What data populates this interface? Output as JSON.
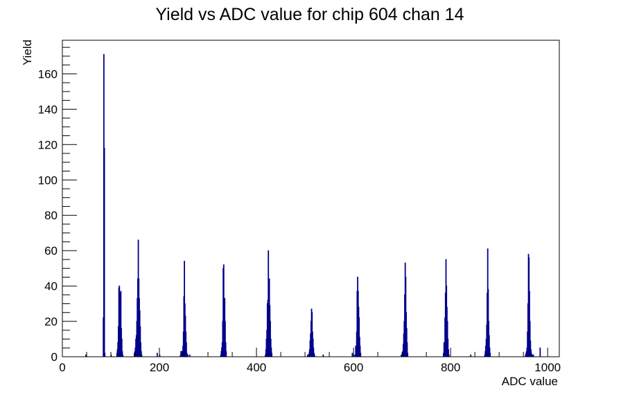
{
  "chart_data": {
    "type": "histogram",
    "title": "Yield vs ADC value for chip 604 chan 14",
    "xlabel": "ADC value",
    "ylabel": "Yield",
    "xlim": [
      0,
      1024
    ],
    "ylim": [
      0,
      179
    ],
    "x_ticks": [
      0,
      200,
      400,
      600,
      800,
      1000
    ],
    "y_ticks": [
      0,
      20,
      40,
      60,
      80,
      100,
      120,
      140,
      160
    ],
    "bin_width": 1,
    "line_color": "#00008b",
    "series": [
      {
        "bins": [
          [
            48,
            1
          ],
          [
            84,
            22
          ],
          [
            85,
            171
          ],
          [
            86,
            118
          ],
          [
            87,
            2
          ],
          [
            100,
            1
          ],
          [
            112,
            2
          ],
          [
            113,
            4
          ],
          [
            114,
            8
          ],
          [
            115,
            17
          ],
          [
            116,
            39
          ],
          [
            117,
            40
          ],
          [
            118,
            24
          ],
          [
            119,
            36
          ],
          [
            120,
            37
          ],
          [
            121,
            16
          ],
          [
            122,
            10
          ],
          [
            123,
            3
          ],
          [
            124,
            1
          ],
          [
            148,
            2
          ],
          [
            149,
            3
          ],
          [
            150,
            5
          ],
          [
            151,
            10
          ],
          [
            152,
            12
          ],
          [
            153,
            20
          ],
          [
            154,
            33
          ],
          [
            155,
            44
          ],
          [
            156,
            66
          ],
          [
            157,
            44
          ],
          [
            158,
            33
          ],
          [
            159,
            26
          ],
          [
            160,
            17
          ],
          [
            161,
            8
          ],
          [
            162,
            3
          ],
          [
            163,
            1
          ],
          [
            195,
            2
          ],
          [
            200,
            1
          ],
          [
            243,
            1
          ],
          [
            244,
            3
          ],
          [
            245,
            1
          ],
          [
            246,
            3
          ],
          [
            248,
            6
          ],
          [
            249,
            14
          ],
          [
            250,
            34
          ],
          [
            251,
            54
          ],
          [
            252,
            30
          ],
          [
            253,
            23
          ],
          [
            254,
            14
          ],
          [
            255,
            8
          ],
          [
            256,
            2
          ],
          [
            258,
            1
          ],
          [
            262,
            1
          ],
          [
            326,
            1
          ],
          [
            327,
            3
          ],
          [
            328,
            5
          ],
          [
            329,
            8
          ],
          [
            330,
            20
          ],
          [
            331,
            50
          ],
          [
            332,
            52
          ],
          [
            333,
            30
          ],
          [
            334,
            33
          ],
          [
            335,
            20
          ],
          [
            336,
            8
          ],
          [
            337,
            3
          ],
          [
            418,
            1
          ],
          [
            419,
            4
          ],
          [
            420,
            10
          ],
          [
            421,
            15
          ],
          [
            422,
            30
          ],
          [
            423,
            32
          ],
          [
            424,
            60
          ],
          [
            425,
            30
          ],
          [
            426,
            44
          ],
          [
            427,
            29
          ],
          [
            428,
            20
          ],
          [
            429,
            10
          ],
          [
            430,
            5
          ],
          [
            431,
            2
          ],
          [
            505,
            1
          ],
          [
            507,
            1
          ],
          [
            508,
            2
          ],
          [
            509,
            4
          ],
          [
            510,
            9
          ],
          [
            511,
            13
          ],
          [
            512,
            20
          ],
          [
            513,
            27
          ],
          [
            514,
            25
          ],
          [
            515,
            14
          ],
          [
            516,
            10
          ],
          [
            517,
            5
          ],
          [
            518,
            2
          ],
          [
            519,
            1
          ],
          [
            537,
            1
          ],
          [
            597,
            2
          ],
          [
            600,
            1
          ],
          [
            603,
            1
          ],
          [
            604,
            6
          ],
          [
            605,
            4
          ],
          [
            606,
            14
          ],
          [
            607,
            37
          ],
          [
            608,
            45
          ],
          [
            609,
            37
          ],
          [
            610,
            28
          ],
          [
            611,
            22
          ],
          [
            612,
            11
          ],
          [
            613,
            6
          ],
          [
            614,
            2
          ],
          [
            698,
            1
          ],
          [
            700,
            1
          ],
          [
            701,
            3
          ],
          [
            702,
            7
          ],
          [
            703,
            13
          ],
          [
            704,
            20
          ],
          [
            705,
            35
          ],
          [
            706,
            53
          ],
          [
            707,
            45
          ],
          [
            708,
            25
          ],
          [
            709,
            16
          ],
          [
            710,
            8
          ],
          [
            711,
            2
          ],
          [
            785,
            2
          ],
          [
            786,
            8
          ],
          [
            787,
            5
          ],
          [
            788,
            22
          ],
          [
            789,
            36
          ],
          [
            790,
            55
          ],
          [
            791,
            40
          ],
          [
            792,
            28
          ],
          [
            793,
            20
          ],
          [
            794,
            10
          ],
          [
            795,
            4
          ],
          [
            796,
            1
          ],
          [
            841,
            1
          ],
          [
            870,
            1
          ],
          [
            871,
            3
          ],
          [
            872,
            6
          ],
          [
            873,
            10
          ],
          [
            874,
            18
          ],
          [
            875,
            36
          ],
          [
            876,
            61
          ],
          [
            877,
            38
          ],
          [
            878,
            20
          ],
          [
            879,
            12
          ],
          [
            880,
            5
          ],
          [
            881,
            2
          ],
          [
            954,
            1
          ],
          [
            955,
            2
          ],
          [
            956,
            3
          ],
          [
            957,
            5
          ],
          [
            958,
            14
          ],
          [
            959,
            30
          ],
          [
            960,
            58
          ],
          [
            961,
            56
          ],
          [
            962,
            37
          ],
          [
            963,
            20
          ],
          [
            964,
            9
          ],
          [
            965,
            4
          ],
          [
            966,
            2
          ],
          [
            968,
            1
          ],
          [
            970,
            1
          ],
          [
            984,
            5
          ]
        ]
      }
    ]
  }
}
